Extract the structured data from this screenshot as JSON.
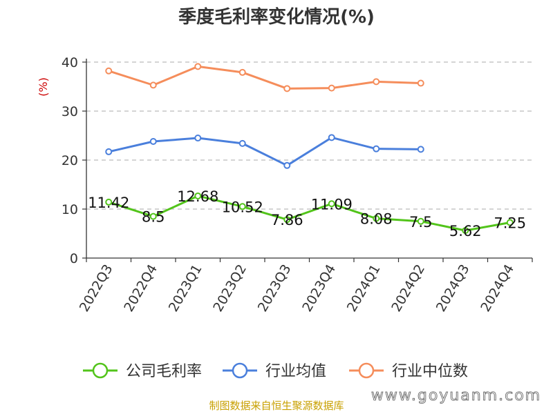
{
  "chart_data": {
    "type": "line",
    "title": "季度毛利率变化情况(%)",
    "ylabel": "(%)",
    "categories": [
      "2022Q3",
      "2022Q4",
      "2023Q1",
      "2023Q2",
      "2023Q3",
      "2023Q4",
      "2024Q1",
      "2024Q2",
      "2024Q3",
      "2024Q4"
    ],
    "ylim": [
      0,
      40
    ],
    "yticks": [
      0,
      10,
      20,
      30,
      40
    ],
    "grid": true,
    "legend_position": "bottom",
    "series": [
      {
        "name": "公司毛利率",
        "color": "#52c41a",
        "values": [
          11.42,
          8.5,
          12.68,
          10.52,
          7.86,
          11.09,
          8.08,
          7.5,
          5.62,
          7.25
        ],
        "labels": [
          "11.42",
          "8.5",
          "12.68",
          "10.52",
          "7.86",
          "11.09",
          "8.08",
          "7.5",
          "5.62",
          "7.25"
        ]
      },
      {
        "name": "行业均值",
        "color": "#4a7fdc",
        "values": [
          21.7,
          23.8,
          24.5,
          23.4,
          18.9,
          24.6,
          22.3,
          22.2,
          null,
          null
        ]
      },
      {
        "name": "行业中位数",
        "color": "#f58d5b",
        "values": [
          38.2,
          35.3,
          39.1,
          37.9,
          34.6,
          34.7,
          36.0,
          35.7,
          null,
          null
        ]
      }
    ]
  },
  "footer": {
    "source": "制图数据来自恒生聚源数据库",
    "watermark": "www.goyuanm.com"
  }
}
